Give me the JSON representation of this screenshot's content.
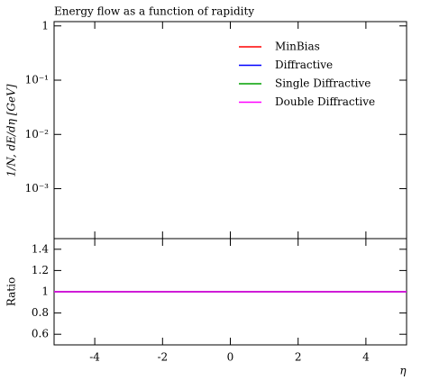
{
  "chart_data": [
    {
      "type": "line",
      "title": "Energy flow as a function of rapidity",
      "ylabel": "1/N, dE/dη [GeV]",
      "log_y": true,
      "xlim": [
        -5.2,
        5.2
      ],
      "ylim": [
        0.00012,
        1.2
      ],
      "yticks": [
        1,
        {
          "value": 0.1,
          "label": "10⁻¹"
        },
        {
          "value": 0.01,
          "label": "10⁻²"
        },
        {
          "value": 0.001,
          "label": "10⁻³"
        }
      ],
      "legend": "upper right",
      "series": [
        {
          "name": "MinBias",
          "color": "#ff0000",
          "values": []
        },
        {
          "name": "Diffractive",
          "color": "#0000ff",
          "values": []
        },
        {
          "name": "Single Diffractive",
          "color": "#00a000",
          "values": []
        },
        {
          "name": "Double Diffractive",
          "color": "#ff00ff",
          "values": []
        }
      ]
    },
    {
      "type": "line",
      "ylabel": "Ratio",
      "xlabel": "η",
      "xlim": [
        -5.2,
        5.2
      ],
      "xticks": [
        -4,
        -2,
        0,
        2,
        4
      ],
      "ylim": [
        0.5,
        1.5
      ],
      "yticks": [
        0.6,
        0.8,
        1,
        1.2,
        1.4
      ],
      "x": [
        -5.2,
        5.2
      ],
      "series": [
        {
          "color": "#ff0000",
          "values": [
            1,
            1
          ]
        },
        {
          "color": "#0000ff",
          "values": [
            1,
            1
          ]
        },
        {
          "color": "#00a000",
          "values": [
            1,
            1
          ]
        },
        {
          "color": "#ff00ff",
          "values": [
            1,
            1
          ]
        }
      ]
    }
  ]
}
